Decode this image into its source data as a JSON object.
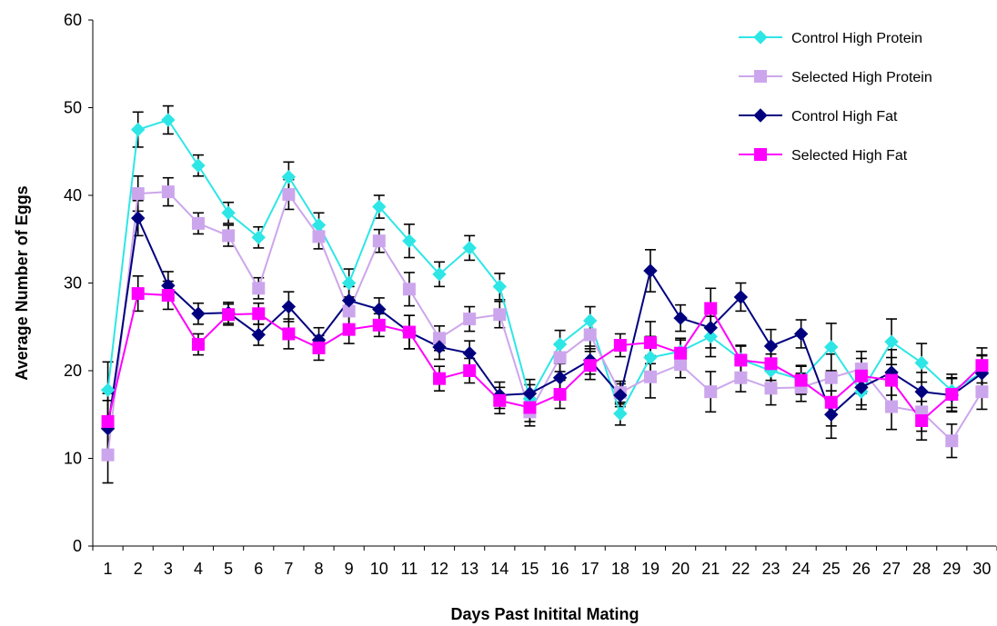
{
  "chart_data": {
    "type": "line",
    "xlabel": "Days Past Initital Mating",
    "ylabel": "Average Number of Eggs",
    "x": [
      1,
      2,
      3,
      4,
      5,
      6,
      7,
      8,
      9,
      10,
      11,
      12,
      13,
      14,
      15,
      16,
      17,
      18,
      19,
      20,
      21,
      22,
      23,
      24,
      25,
      26,
      27,
      28,
      29,
      30
    ],
    "ylim": [
      0,
      60
    ],
    "yticks": [
      0,
      10,
      20,
      30,
      40,
      50,
      60
    ],
    "grid": false,
    "legend_position": "top-right",
    "error_bars": true,
    "series": [
      {
        "name": "Control High Protein",
        "color": "#2EE6E6",
        "marker": "diamond",
        "values": [
          17.8,
          47.5,
          48.6,
          43.4,
          38.0,
          35.2,
          42.1,
          36.6,
          30.0,
          38.7,
          34.8,
          31.0,
          34.0,
          29.6,
          16.8,
          23.0,
          25.7,
          15.1,
          21.5,
          22.2,
          23.9,
          21.3,
          20.0,
          19.0,
          22.7,
          17.6,
          23.3,
          20.9,
          17.7,
          19.8
        ],
        "errors": [
          3.2,
          2.0,
          1.6,
          1.2,
          1.2,
          1.2,
          1.7,
          1.4,
          1.6,
          1.3,
          1.9,
          1.4,
          1.4,
          1.5,
          1.6,
          1.6,
          1.6,
          1.3,
          2.4,
          1.5,
          2.3,
          1.6,
          1.9,
          1.6,
          2.7,
          2.0,
          2.6,
          2.2,
          1.9,
          2.0
        ]
      },
      {
        "name": "Selected High Protein",
        "color": "#CCA6EC",
        "marker": "square",
        "values": [
          10.4,
          40.2,
          40.4,
          36.8,
          35.4,
          29.4,
          40.1,
          35.3,
          26.8,
          34.8,
          29.3,
          23.7,
          25.9,
          26.4,
          15.3,
          21.5,
          24.1,
          17.5,
          19.3,
          20.7,
          17.6,
          19.2,
          18.0,
          18.1,
          19.2,
          20.2,
          15.9,
          15.3,
          12.0,
          17.6
        ]
      },
      {
        "name": "Control High Fat",
        "color": "#00007F",
        "marker": "diamond",
        "values": [
          13.4,
          37.4,
          29.7,
          26.5,
          26.6,
          24.1,
          27.3,
          23.5,
          28.0,
          27.0,
          24.4,
          22.7,
          22.0,
          17.2,
          17.4,
          19.2,
          21.2,
          17.2,
          31.4,
          26.0,
          24.9,
          28.4,
          22.8,
          24.2,
          15.0,
          18.1,
          19.8,
          17.6,
          17.2,
          19.7
        ]
      },
      {
        "name": "Selected High Fat",
        "color": "#FF00FF",
        "marker": "square",
        "values": [
          14.2,
          28.8,
          28.6,
          23.0,
          26.4,
          26.5,
          24.2,
          22.6,
          24.7,
          25.2,
          24.4,
          19.1,
          20.0,
          16.6,
          15.8,
          17.3,
          20.6,
          22.9,
          23.2,
          22.0,
          27.1,
          21.2,
          20.8,
          18.9,
          16.4,
          19.4,
          18.9,
          14.3,
          17.3,
          20.6
        ]
      }
    ]
  }
}
